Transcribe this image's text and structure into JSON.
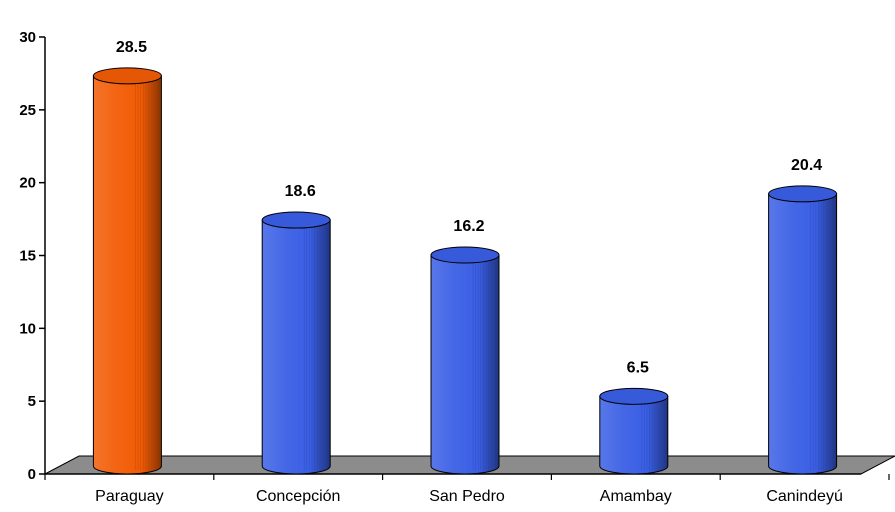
{
  "chart_data": {
    "type": "bar",
    "style": "3d-cylinder",
    "categories": [
      "Paraguay",
      "Concepción",
      "San Pedro",
      "Amambay",
      "Canindeyú"
    ],
    "values": [
      28.5,
      18.6,
      16.2,
      6.5,
      20.4
    ],
    "data_labels": [
      "28.5",
      "18.6",
      "16.2",
      "6.5",
      "20.4"
    ],
    "bar_colors": [
      "#f25c05",
      "#3a5fe5",
      "#3a5fe5",
      "#3a5fe5",
      "#3a5fe5"
    ],
    "floor_color": "#8c8c8c",
    "ylim": [
      0,
      30
    ],
    "yticks": [
      0,
      5,
      10,
      15,
      20,
      25,
      30
    ],
    "ytick_labels": [
      "0",
      "5",
      "10",
      "15",
      "20",
      "25",
      "30"
    ],
    "grid": false,
    "legend": "none"
  }
}
